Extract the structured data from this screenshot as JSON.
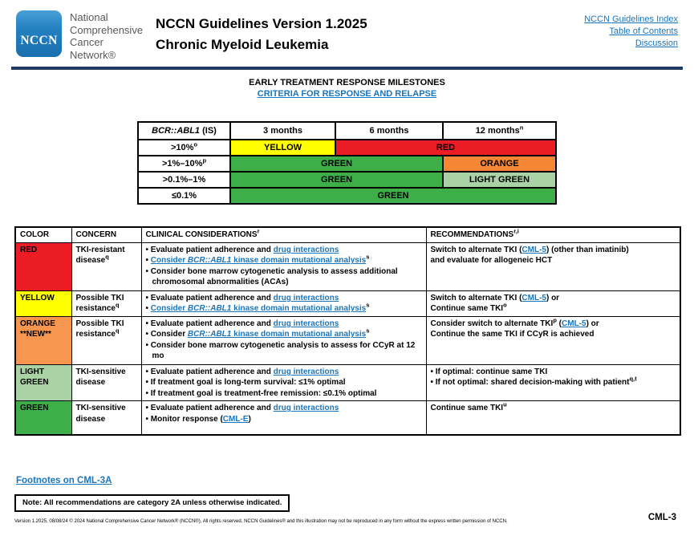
{
  "colors": {
    "logo_blue": "#2380C1",
    "rule_navy": "#1F3864",
    "link_blue": "#1B75BC",
    "red": "#EC1C24",
    "yellow": "#FFFF00",
    "green": "#3EAE49",
    "orange": "#F58634",
    "orange_light": "#F7974F",
    "light_green": "#A9D3A4"
  },
  "header": {
    "logo_text": "NCCN",
    "org_lines": [
      "National",
      "Comprehensive",
      "Cancer",
      "Network®"
    ],
    "title_line1": "NCCN Guidelines Version 1.2025",
    "title_line2": "Chronic Myeloid Leukemia",
    "links": [
      "NCCN Guidelines Index",
      "Table of Contents",
      "Discussion"
    ]
  },
  "section": {
    "title": "EARLY TREATMENT RESPONSE MILESTONES",
    "subtitle_link": "CRITERIA FOR RESPONSE AND RELAPSE"
  },
  "milestone_table": {
    "header": {
      "col0": [
        {
          "t": "BCR::ABL1",
          "c": "i"
        },
        {
          "t": " (IS)"
        }
      ],
      "col1": [
        {
          "t": "3 months"
        }
      ],
      "col2": [
        {
          "t": "6 months"
        }
      ],
      "col3": [
        {
          "t": "12 months"
        },
        {
          "t": "n",
          "c": "sup"
        }
      ]
    },
    "rows": [
      {
        "label": [
          {
            "t": ">10%"
          },
          {
            "t": "o",
            "c": "sup"
          }
        ],
        "cells": [
          {
            "text": "YELLOW",
            "color": "yellow",
            "span": 1
          },
          {
            "text": "RED",
            "color": "red",
            "span": 2
          }
        ]
      },
      {
        "label": [
          {
            "t": ">1%–10%"
          },
          {
            "t": "p",
            "c": "sup"
          }
        ],
        "cells": [
          {
            "text": "GREEN",
            "color": "green",
            "span": 2
          },
          {
            "text": "ORANGE",
            "color": "orange",
            "span": 1
          }
        ]
      },
      {
        "label": [
          {
            "t": ">0.1%–1%"
          }
        ],
        "cells": [
          {
            "text": "GREEN",
            "color": "green",
            "span": 2
          },
          {
            "text": "LIGHT GREEN",
            "color": "light_green",
            "span": 1
          }
        ]
      },
      {
        "label": [
          {
            "t": "≤0.1%"
          }
        ],
        "cells": [
          {
            "text": "GREEN",
            "color": "green",
            "span": 3
          }
        ]
      }
    ]
  },
  "main_table": {
    "headers": {
      "color": [
        {
          "t": "COLOR"
        }
      ],
      "concern": [
        {
          "t": "CONCERN"
        }
      ],
      "considerations": [
        {
          "t": "CLINICAL CONSIDERATIONS"
        },
        {
          "t": "r",
          "c": "sup"
        }
      ],
      "recommendations": [
        {
          "t": "RECOMMENDATIONS"
        },
        {
          "t": "r,i",
          "c": "sup"
        }
      ]
    },
    "rows": [
      {
        "color_label": [
          {
            "t": "RED"
          }
        ],
        "color_key": "red",
        "concern": [
          {
            "t": "TKI-resistant disease"
          },
          {
            "t": "q",
            "c": "sup"
          }
        ],
        "considerations": [
          {
            "b": true,
            "segs": [
              {
                "t": "Evaluate patient adherence and "
              },
              {
                "t": "drug interactions",
                "c": "lnk"
              }
            ]
          },
          {
            "b": true,
            "segs": [
              {
                "t": "Consider ",
                "c": "lnk"
              },
              {
                "t": "BCR::ABL1",
                "c": "lnk i"
              },
              {
                "t": " kinase domain mutational analysis",
                "c": "lnk"
              },
              {
                "t": "s",
                "c": "sup"
              }
            ]
          },
          {
            "b": true,
            "segs": [
              {
                "t": "Consider bone marrow cytogenetic analysis to assess additional chromosomal abnormalities (ACAs)"
              }
            ]
          }
        ],
        "recommendations": [
          {
            "b": false,
            "segs": [
              {
                "t": "Switch to alternate TKI ("
              },
              {
                "t": "CML-5",
                "c": "lnk"
              },
              {
                "t": ") (other than imatinib)"
              },
              {
                "br": true
              },
              {
                "t": "and evaluate for allogeneic HCT"
              }
            ]
          }
        ]
      },
      {
        "color_label": [
          {
            "t": "YELLOW"
          }
        ],
        "color_key": "yellow",
        "concern": [
          {
            "t": "Possible TKI resistance"
          },
          {
            "t": "q",
            "c": "sup"
          }
        ],
        "considerations": [
          {
            "b": true,
            "segs": [
              {
                "t": "Evaluate patient adherence and "
              },
              {
                "t": "drug interactions",
                "c": "lnk"
              }
            ]
          },
          {
            "b": true,
            "segs": [
              {
                "t": "Consider ",
                "c": "lnk"
              },
              {
                "t": "BCR::ABL1",
                "c": "lnk i"
              },
              {
                "t": " kinase domain mutational analysis",
                "c": "lnk"
              },
              {
                "t": "s",
                "c": "sup"
              }
            ]
          }
        ],
        "recommendations": [
          {
            "b": false,
            "segs": [
              {
                "t": "Switch to alternate TKI ("
              },
              {
                "t": "CML-5",
                "c": "lnk"
              },
              {
                "t": ") or"
              },
              {
                "br": true
              },
              {
                "t": "Continue same TKI"
              },
              {
                "t": "o",
                "c": "sup"
              }
            ]
          }
        ]
      },
      {
        "color_label": [
          {
            "t": "ORANGE"
          },
          {
            "br": true
          },
          {
            "t": "**NEW**"
          }
        ],
        "color_key": "orange_light",
        "concern": [
          {
            "t": "Possible TKI resistance"
          },
          {
            "t": "q",
            "c": "sup"
          }
        ],
        "considerations": [
          {
            "b": true,
            "segs": [
              {
                "t": "Evaluate patient adherence and "
              },
              {
                "t": "drug interactions",
                "c": "lnk"
              }
            ]
          },
          {
            "b": true,
            "segs": [
              {
                "t": "Consider "
              },
              {
                "t": "BCR::ABL1",
                "c": "lnk i"
              },
              {
                "t": " kinase domain mutational analysis",
                "c": "lnk"
              },
              {
                "t": "s",
                "c": "sup"
              }
            ]
          },
          {
            "b": true,
            "segs": [
              {
                "t": "Consider bone marrow cytogenetic analysis to assess for CCyR at 12 mo"
              }
            ]
          }
        ],
        "recommendations": [
          {
            "b": false,
            "segs": [
              {
                "t": "Consider switch to alternate TKI"
              },
              {
                "t": "p",
                "c": "sup"
              },
              {
                "t": " ("
              },
              {
                "t": "CML-5",
                "c": "lnk"
              },
              {
                "t": ") or"
              },
              {
                "br": true
              },
              {
                "t": "Continue the same TKI if CCyR is achieved"
              }
            ]
          }
        ]
      },
      {
        "color_label": [
          {
            "t": "LIGHT GREEN"
          }
        ],
        "color_key": "light_green",
        "concern": [
          {
            "t": "TKI-sensitive disease"
          }
        ],
        "considerations": [
          {
            "b": true,
            "segs": [
              {
                "t": "Evaluate patient adherence and "
              },
              {
                "t": "drug interactions",
                "c": "lnk"
              }
            ]
          },
          {
            "b": true,
            "segs": [
              {
                "t": "If treatment goal is long-term survival: ≤1% optimal"
              }
            ]
          },
          {
            "b": true,
            "segs": [
              {
                "t": "If treatment goal is treatment-free remission: ≤0.1% optimal"
              }
            ]
          }
        ],
        "recommendations": [
          {
            "b": true,
            "segs": [
              {
                "t": "If optimal: continue same TKI"
              }
            ]
          },
          {
            "b": true,
            "segs": [
              {
                "t": "If not optimal: shared decision-making with patient"
              },
              {
                "t": "q,t",
                "c": "sup"
              }
            ]
          }
        ]
      },
      {
        "color_label": [
          {
            "t": "GREEN"
          }
        ],
        "color_key": "green",
        "concern": [
          {
            "t": "TKI-sensitive disease"
          }
        ],
        "considerations": [
          {
            "b": true,
            "segs": [
              {
                "t": "Evaluate patient adherence and "
              },
              {
                "t": "drug interactions",
                "c": "lnk"
              }
            ]
          },
          {
            "b": true,
            "segs": [
              {
                "t": "Monitor response ("
              },
              {
                "t": "CML-E",
                "c": "lnk"
              },
              {
                "t": ")"
              }
            ]
          }
        ],
        "recommendations": [
          {
            "b": false,
            "segs": [
              {
                "t": "Continue same TKI"
              },
              {
                "t": "u",
                "c": "sup"
              }
            ]
          }
        ]
      }
    ]
  },
  "footer": {
    "footnotes_link": "Footnotes on CML-3A",
    "note": "Note: All recommendations are category 2A unless otherwise indicated.",
    "version_line": "Version 1.2025, 08/08/24 © 2024 National Comprehensive Cancer Network® (NCCN®), All rights reserved. NCCN Guidelines® and this illustration may not be reproduced in any form without the express written permission of NCCN.",
    "page_label": "CML-3"
  }
}
